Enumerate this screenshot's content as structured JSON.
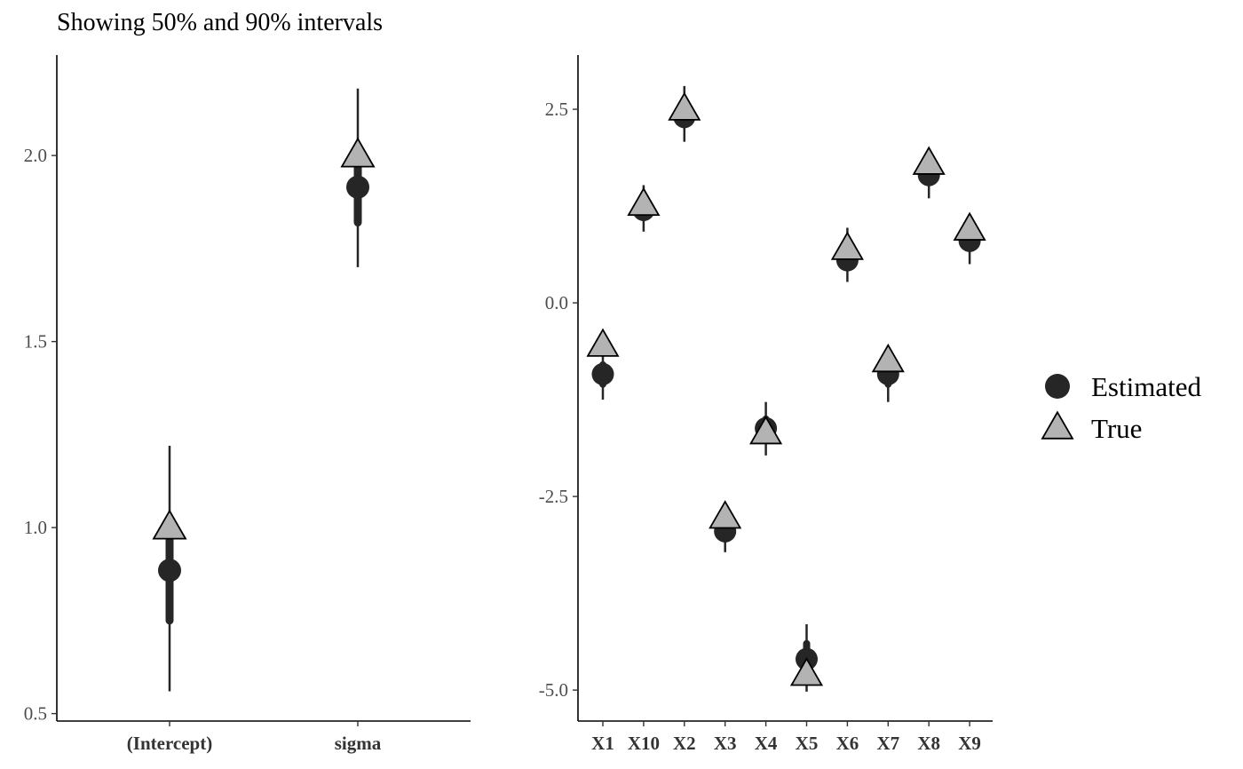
{
  "subtitle": "Showing 50% and 90% intervals",
  "colors": {
    "estimated": "#262626",
    "true_fill": "#b3b3b3",
    "true_stroke": "#000000",
    "axis": "#000000",
    "tick_text": "#4d4d4d"
  },
  "legend": {
    "items": [
      {
        "label": "Estimated",
        "shape": "circle"
      },
      {
        "label": "True",
        "shape": "triangle"
      }
    ],
    "position": "right"
  },
  "chart_data": [
    {
      "type": "scatter",
      "title": "",
      "xlabel": "",
      "ylabel": "",
      "ylim": [
        0.48,
        2.27
      ],
      "yticks": [
        0.5,
        1.0,
        1.5,
        2.0
      ],
      "ytick_labels": [
        "0.5",
        "1.0",
        "1.5",
        "2.0"
      ],
      "categories": [
        "(Intercept)",
        "sigma"
      ],
      "series": [
        {
          "name": "Estimated",
          "values": [
            0.885,
            1.915
          ]
        },
        {
          "name": "True",
          "values": [
            1.0,
            2.0
          ]
        }
      ],
      "intervals_50": [
        [
          0.75,
          0.98
        ],
        [
          1.82,
          2.0
        ]
      ],
      "intervals_90": [
        [
          0.56,
          1.22
        ],
        [
          1.7,
          2.18
        ]
      ]
    },
    {
      "type": "scatter",
      "title": "",
      "xlabel": "",
      "ylabel": "",
      "ylim": [
        -5.4,
        3.2
      ],
      "yticks": [
        -5.0,
        -2.5,
        0.0,
        2.5
      ],
      "ytick_labels": [
        "-5.0",
        "-2.5",
        "0.0",
        "2.5"
      ],
      "categories": [
        "X1",
        "X10",
        "X2",
        "X3",
        "X4",
        "X5",
        "X6",
        "X7",
        "X8",
        "X9"
      ],
      "series": [
        {
          "name": "Estimated",
          "values": [
            -0.92,
            1.2,
            2.4,
            -2.95,
            -1.62,
            -4.6,
            0.55,
            -0.92,
            1.65,
            0.8
          ]
        },
        {
          "name": "True",
          "values": [
            -0.55,
            1.27,
            2.5,
            -2.77,
            -1.68,
            -4.8,
            0.7,
            -0.75,
            1.8,
            0.95
          ]
        }
      ],
      "intervals_50": [
        [
          -1.05,
          -0.8
        ],
        [
          1.1,
          1.3
        ],
        [
          2.3,
          2.5
        ],
        [
          -3.05,
          -2.85
        ],
        [
          -1.75,
          -1.5
        ],
        [
          -4.75,
          -4.4
        ],
        [
          0.45,
          0.65
        ],
        [
          -1.05,
          -0.8
        ],
        [
          1.55,
          1.75
        ],
        [
          0.7,
          0.9
        ]
      ],
      "intervals_90": [
        [
          -1.25,
          -0.6
        ],
        [
          0.92,
          1.52
        ],
        [
          2.08,
          2.8
        ],
        [
          -3.22,
          -2.68
        ],
        [
          -1.97,
          -1.28
        ],
        [
          -5.02,
          -4.15
        ],
        [
          0.27,
          0.97
        ],
        [
          -1.28,
          -0.55
        ],
        [
          1.35,
          1.95
        ],
        [
          0.5,
          1.1
        ]
      ]
    }
  ]
}
